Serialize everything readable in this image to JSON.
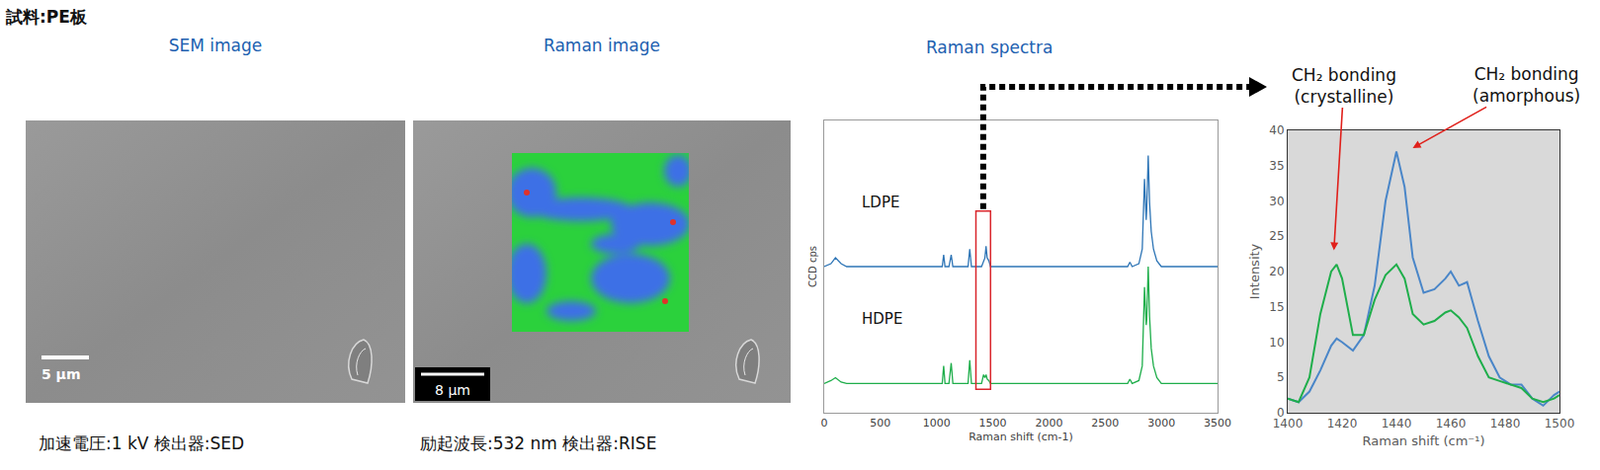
{
  "sample_label": "試料:PE板",
  "panels": [
    {
      "title": "SEM image",
      "caption": "加速電圧:1 kV 検出器:SED",
      "scale_bar": "5 µm"
    },
    {
      "title": "Raman image",
      "caption": "励起波長:532 nm 検出器:RISE",
      "scale_bar": "8 µm"
    }
  ],
  "chart_data": [
    {
      "type": "line",
      "title": "Raman spectra",
      "x_label": "Raman shift (cm-1)",
      "y_label": "CCD cps",
      "xlim": [
        0,
        3500
      ],
      "xticks": [
        0,
        500,
        1000,
        1500,
        2000,
        2500,
        3000,
        3500
      ],
      "ylim": [
        0,
        100
      ],
      "tick_labels": "x",
      "grid": false,
      "highlight_range": [
        1350,
        1480
      ],
      "x": [
        0,
        60,
        100,
        150,
        200,
        400,
        1000,
        1050,
        1063,
        1075,
        1110,
        1130,
        1145,
        1280,
        1295,
        1310,
        1400,
        1418,
        1430,
        1440,
        1450,
        1465,
        1480,
        1500,
        2650,
        2700,
        2720,
        2740,
        2800,
        2830,
        2850,
        2865,
        2870,
        2883,
        2895,
        2910,
        2930,
        2960,
        3000,
        3100,
        3500
      ],
      "series": [
        {
          "name": "LDPE",
          "color": "#2e75b6",
          "values": [
            50,
            51,
            53,
            51,
            50,
            50,
            50,
            50,
            54,
            50,
            50,
            54,
            50,
            50,
            56,
            50,
            50,
            52,
            53,
            57,
            53,
            52,
            50,
            50,
            50,
            50,
            51.5,
            50,
            51,
            56,
            80,
            66,
            70,
            88,
            72,
            62,
            56,
            52,
            50,
            50,
            50
          ]
        },
        {
          "name": "HDPE",
          "color": "#1fae4b",
          "values": [
            10,
            11,
            12,
            10.5,
            10,
            10,
            10,
            10,
            16,
            10,
            10,
            17,
            10,
            10,
            18,
            10,
            10,
            13,
            12,
            13,
            11.5,
            11,
            10,
            10,
            10,
            10,
            11.5,
            10,
            11,
            16,
            43,
            30,
            32,
            50,
            33,
            22,
            16,
            12,
            10,
            10,
            10
          ]
        }
      ]
    },
    {
      "type": "line",
      "x_label": "Raman shift (cm⁻¹)",
      "y_label": "Intensity",
      "xlim": [
        1400,
        1500
      ],
      "xticks": [
        1400,
        1420,
        1440,
        1460,
        1480,
        1500
      ],
      "ylim": [
        0,
        40
      ],
      "yticks": [
        0,
        5,
        10,
        15,
        20,
        25,
        30,
        35,
        40
      ],
      "grid": false,
      "x": [
        1400,
        1404,
        1408,
        1412,
        1416,
        1418,
        1420,
        1424,
        1428,
        1432,
        1436,
        1440,
        1443,
        1446,
        1450,
        1454,
        1458,
        1460,
        1463,
        1466,
        1470,
        1474,
        1478,
        1482,
        1486,
        1490,
        1494,
        1498,
        1500
      ],
      "series": [
        {
          "color": "#4a86c8",
          "values": [
            2,
            1.5,
            3,
            6,
            9.5,
            10.5,
            10,
            8.8,
            11,
            18,
            30,
            37,
            32,
            22,
            17,
            17.5,
            19,
            20,
            18,
            18.5,
            13,
            8,
            5,
            4,
            4,
            2,
            1,
            2.5,
            3
          ]
        },
        {
          "color": "#1fae4b",
          "values": [
            2,
            1.5,
            5,
            14,
            20,
            21,
            19,
            11,
            11,
            16,
            19.5,
            21,
            19,
            14,
            12.5,
            13,
            14.2,
            14.5,
            13.5,
            12,
            8,
            5,
            4.5,
            4,
            3.5,
            2,
            1.5,
            2,
            2.5
          ]
        }
      ],
      "annotations": [
        {
          "text": "CH₂ bonding (crystalline)",
          "x": 1417,
          "y": 23
        },
        {
          "text": "CH₂ bonding (amorphous)",
          "x": 1446,
          "y": 37.5
        }
      ]
    }
  ]
}
